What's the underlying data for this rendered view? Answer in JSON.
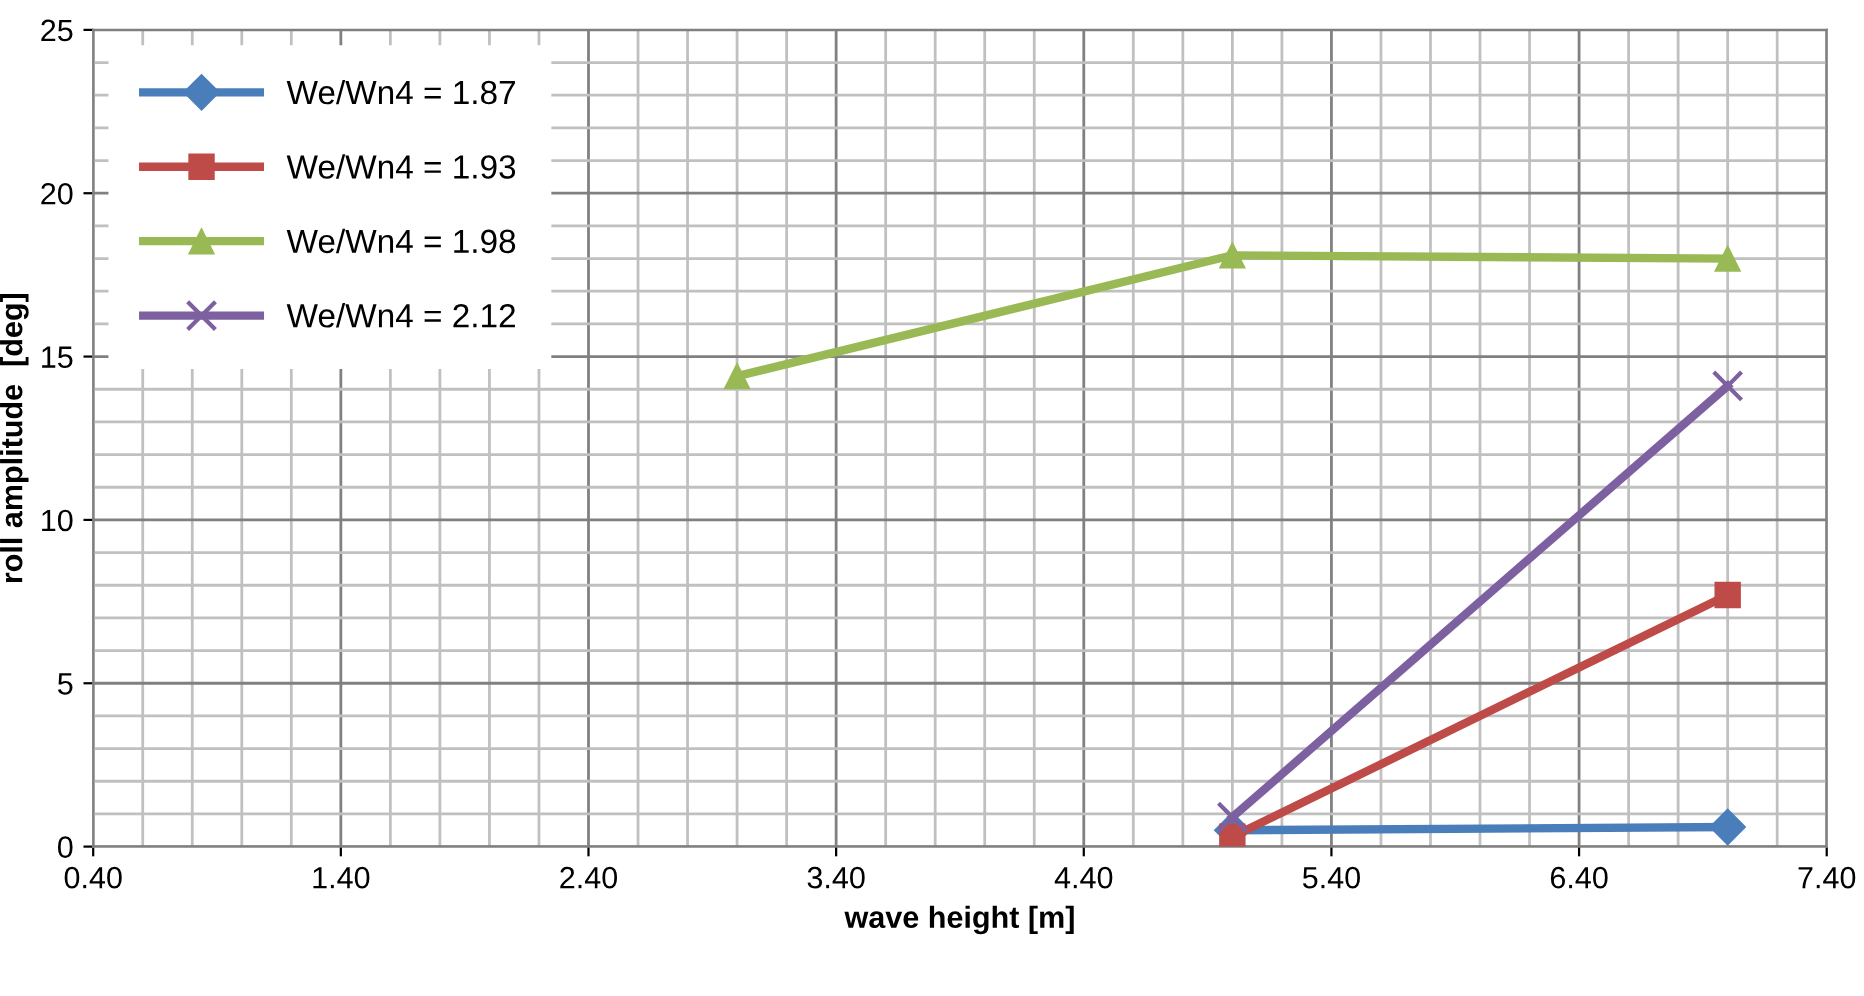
{
  "chart_data": {
    "type": "line",
    "xlabel": "wave height [m]",
    "ylabel": "roll amplitude  [deg]",
    "xlim": [
      0.4,
      7.4
    ],
    "xticks": [
      {
        "value": 0.4,
        "label": "0.40"
      },
      {
        "value": 1.4,
        "label": "1.40"
      },
      {
        "value": 2.4,
        "label": "2.40"
      },
      {
        "value": 3.4,
        "label": "3.40"
      },
      {
        "value": 4.4,
        "label": "4.40"
      },
      {
        "value": 5.4,
        "label": "5.40"
      },
      {
        "value": 6.4,
        "label": "6.40"
      },
      {
        "value": 7.4,
        "label": "7.40"
      }
    ],
    "ylim": [
      0,
      25
    ],
    "yticks": [
      0,
      5,
      10,
      15,
      20,
      25
    ],
    "grid": true,
    "legend": "top left",
    "line_style": "solid",
    "series": [
      {
        "name": "We/Wn4 = 1.87",
        "color": "#4a7ebb",
        "marker": "diamond",
        "x": [
          5.0,
          7.0
        ],
        "values": [
          0.5,
          0.6
        ]
      },
      {
        "name": "We/Wn4 = 1.93",
        "color": "#be4b48",
        "marker": "square",
        "x": [
          5.0,
          7.0
        ],
        "values": [
          0.3,
          7.7
        ]
      },
      {
        "name": "We/Wn4 = 1.98",
        "color": "#98b954",
        "marker": "triangle",
        "x": [
          3.0,
          5.0,
          7.0
        ],
        "values": [
          14.4,
          18.1,
          18.0
        ]
      },
      {
        "name": "We/Wn4 = 2.12",
        "color": "#7d60a0",
        "marker": "cross",
        "x": [
          5.0,
          7.0
        ],
        "values": [
          0.9,
          14.1
        ]
      }
    ]
  }
}
